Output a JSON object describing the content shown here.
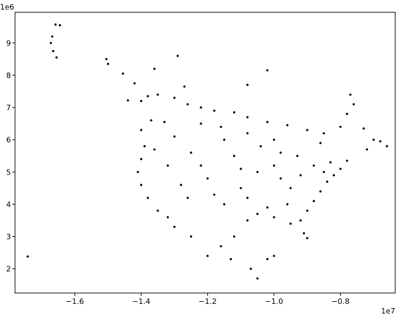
{
  "chart_data": {
    "type": "scatter",
    "title": "",
    "xlabel": "",
    "ylabel": "",
    "x_offset_text": "1e7",
    "y_offset_text": "1e6",
    "xlim": [
      -1.78,
      -0.635
    ],
    "ylim": [
      1.25,
      9.95
    ],
    "x_ticks": [
      -1.6,
      -1.4,
      -1.2,
      -1.0,
      -0.8
    ],
    "x_tick_labels": [
      "−1.6",
      "−1.4",
      "−1.2",
      "−1.0",
      "−0.8"
    ],
    "y_ticks": [
      2,
      3,
      4,
      5,
      6,
      7,
      8,
      9
    ],
    "y_tick_labels": [
      "2",
      "3",
      "4",
      "5",
      "6",
      "7",
      "8",
      "9"
    ],
    "grid": false,
    "legend": "none",
    "marker_color": "#000000",
    "series": [
      {
        "values": [
          [
            -1.658,
            9.57
          ],
          [
            -1.645,
            9.55
          ],
          [
            -1.668,
            9.2
          ],
          [
            -1.672,
            9.0
          ],
          [
            -1.665,
            8.75
          ],
          [
            -1.655,
            8.55
          ],
          [
            -1.505,
            8.5
          ],
          [
            -1.5,
            8.35
          ],
          [
            -1.455,
            8.05
          ],
          [
            -1.742,
            2.38
          ],
          [
            -1.29,
            8.6
          ],
          [
            -1.36,
            8.2
          ],
          [
            -1.02,
            8.15
          ],
          [
            -1.08,
            7.7
          ],
          [
            -1.42,
            7.75
          ],
          [
            -1.27,
            7.65
          ],
          [
            -1.44,
            7.22
          ],
          [
            -1.4,
            7.2
          ],
          [
            -1.38,
            7.35
          ],
          [
            -1.35,
            7.4
          ],
          [
            -1.3,
            7.3
          ],
          [
            -1.26,
            7.1
          ],
          [
            -1.22,
            7.0
          ],
          [
            -1.18,
            6.9
          ],
          [
            -1.12,
            6.85
          ],
          [
            -1.08,
            6.7
          ],
          [
            -1.02,
            6.55
          ],
          [
            -0.96,
            6.45
          ],
          [
            -0.9,
            6.3
          ],
          [
            -0.85,
            6.2
          ],
          [
            -0.8,
            6.4
          ],
          [
            -0.78,
            6.8
          ],
          [
            -0.76,
            7.1
          ],
          [
            -0.77,
            7.4
          ],
          [
            -0.73,
            6.35
          ],
          [
            -0.7,
            6.0
          ],
          [
            -0.68,
            5.95
          ],
          [
            -0.66,
            5.8
          ],
          [
            -0.72,
            5.7
          ],
          [
            -0.78,
            5.35
          ],
          [
            -0.8,
            5.1
          ],
          [
            -0.82,
            4.9
          ],
          [
            -0.84,
            4.7
          ],
          [
            -0.86,
            4.4
          ],
          [
            -0.88,
            4.1
          ],
          [
            -0.9,
            3.8
          ],
          [
            -0.92,
            3.5
          ],
          [
            -0.91,
            3.1
          ],
          [
            -0.9,
            2.95
          ],
          [
            -0.95,
            3.4
          ],
          [
            -1.0,
            3.6
          ],
          [
            -1.05,
            3.7
          ],
          [
            -1.08,
            3.5
          ],
          [
            -1.12,
            3.0
          ],
          [
            -1.16,
            2.7
          ],
          [
            -1.2,
            2.4
          ],
          [
            -1.13,
            2.3
          ],
          [
            -1.07,
            2.0
          ],
          [
            -1.05,
            1.7
          ],
          [
            -1.02,
            2.3
          ],
          [
            -1.0,
            2.4
          ],
          [
            -1.25,
            3.0
          ],
          [
            -1.3,
            3.3
          ],
          [
            -1.32,
            3.6
          ],
          [
            -1.35,
            3.8
          ],
          [
            -1.38,
            4.2
          ],
          [
            -1.4,
            4.6
          ],
          [
            -1.41,
            5.0
          ],
          [
            -1.4,
            5.4
          ],
          [
            -1.39,
            5.8
          ],
          [
            -1.4,
            6.3
          ],
          [
            -1.37,
            6.6
          ],
          [
            -1.33,
            6.55
          ],
          [
            -1.3,
            6.1
          ],
          [
            -1.25,
            5.6
          ],
          [
            -1.22,
            5.2
          ],
          [
            -1.2,
            4.8
          ],
          [
            -1.18,
            4.3
          ],
          [
            -1.15,
            4.0
          ],
          [
            -1.1,
            4.5
          ],
          [
            -1.05,
            5.0
          ],
          [
            -1.0,
            5.2
          ],
          [
            -0.98,
            4.8
          ],
          [
            -0.95,
            4.5
          ],
          [
            -0.96,
            4.0
          ],
          [
            -1.02,
            3.9
          ],
          [
            -1.08,
            4.2
          ],
          [
            -1.12,
            5.5
          ],
          [
            -1.15,
            6.0
          ],
          [
            -1.08,
            6.2
          ],
          [
            -1.0,
            6.0
          ],
          [
            -0.93,
            5.5
          ],
          [
            -0.88,
            5.2
          ],
          [
            -0.86,
            5.9
          ],
          [
            -1.28,
            4.6
          ],
          [
            -1.26,
            4.2
          ],
          [
            -1.32,
            5.2
          ],
          [
            -1.36,
            5.7
          ],
          [
            -1.22,
            6.5
          ],
          [
            -1.16,
            6.4
          ],
          [
            -0.83,
            5.3
          ],
          [
            -0.85,
            5.0
          ],
          [
            -0.92,
            4.9
          ],
          [
            -0.98,
            5.6
          ],
          [
            -1.04,
            5.8
          ],
          [
            -1.1,
            5.1
          ]
        ]
      }
    ]
  }
}
